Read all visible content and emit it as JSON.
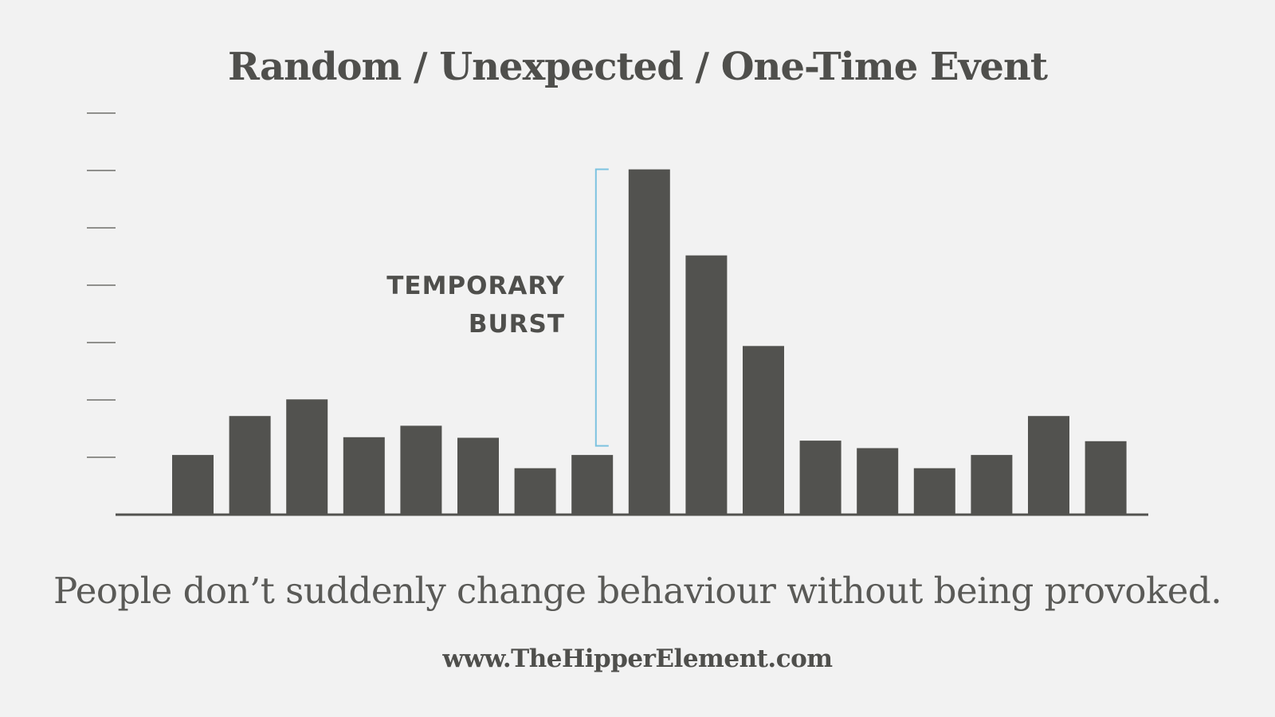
{
  "chart_data": {
    "type": "bar",
    "title": "Random / Unexpected / One-Time Event",
    "xlabel": "",
    "ylabel": "",
    "values": [
      1.04,
      1.72,
      2.01,
      1.35,
      1.55,
      1.34,
      0.81,
      1.04,
      6.02,
      4.52,
      2.94,
      1.29,
      1.16,
      0.81,
      1.04,
      1.72,
      1.28
    ],
    "ylim": [
      0,
      7
    ],
    "y_ticks": [
      1,
      2,
      3,
      4,
      5,
      6,
      7
    ],
    "y_tick_labels": "none",
    "grid": false,
    "bar_color": "#52524f",
    "annotation": {
      "lines": [
        "TEMPORARY",
        "BURST"
      ],
      "bracket_color": "#7cc3e0",
      "bracket_from": 1.2,
      "bracket_to": 6.02,
      "placed_before_bar": 8
    }
  },
  "caption": "People don’t suddenly change behaviour without being provoked.",
  "footer": "www.TheHipperElement.com",
  "colors": {
    "background": "#f2f2f2",
    "text": "#4f4f4c",
    "accent": "#7cc3e0"
  }
}
